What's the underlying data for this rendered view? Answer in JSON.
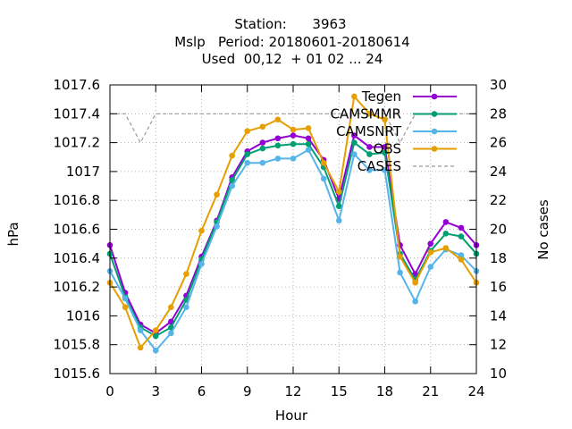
{
  "chart_data": {
    "type": "line",
    "title_lines": [
      "Station:      3963",
      "Mslp   Period: 20180601-20180614",
      "Used  00,12  + 01 02 ... 24"
    ],
    "xlabel": "Hour",
    "ylabel": "hPa",
    "y2label": "No cases",
    "xlim": [
      0,
      24
    ],
    "ylim": [
      1015.6,
      1017.6
    ],
    "y2lim": [
      10,
      30
    ],
    "x_ticks": [
      0,
      3,
      6,
      9,
      12,
      15,
      18,
      21,
      24
    ],
    "x_tick_labels": [
      "0",
      "3",
      "6",
      "9",
      "12",
      "15",
      "18",
      "21",
      "24"
    ],
    "y_ticks": [
      1015.6,
      1015.8,
      1016,
      1016.2,
      1016.4,
      1016.6,
      1016.8,
      1017,
      1017.2,
      1017.4,
      1017.6
    ],
    "y_tick_labels": [
      "1015.6",
      "1015.8",
      "1016",
      "1016.2",
      "1016.4",
      "1016.6",
      "1016.8",
      "1017",
      "1017.2",
      "1017.4",
      "1017.6"
    ],
    "y2_ticks": [
      10,
      12,
      14,
      16,
      18,
      20,
      22,
      24,
      26,
      28,
      30
    ],
    "y2_tick_labels": [
      "10",
      "12",
      "14",
      "16",
      "18",
      "20",
      "22",
      "24",
      "26",
      "28",
      "30"
    ],
    "grid": true,
    "legend_position": "top-right",
    "x": [
      0,
      1,
      2,
      3,
      4,
      5,
      6,
      7,
      8,
      9,
      10,
      11,
      12,
      13,
      14,
      15,
      16,
      17,
      18,
      19,
      20,
      21,
      22,
      23,
      24
    ],
    "series": [
      {
        "name": "Tegen",
        "color": "#9400d3",
        "axis": "y1",
        "marker": "circle",
        "values": [
          1016.49,
          1016.16,
          1015.94,
          1015.88,
          1015.96,
          1016.14,
          1016.41,
          1016.66,
          1016.96,
          1017.14,
          1017.2,
          1017.23,
          1017.25,
          1017.23,
          1017.08,
          1016.81,
          1017.25,
          1017.17,
          1017.17,
          1016.49,
          1016.29,
          1016.5,
          1016.65,
          1016.61,
          1016.49
        ]
      },
      {
        "name": "CAMSMMR",
        "color": "#009e73",
        "axis": "y1",
        "marker": "circle",
        "values": [
          1016.43,
          1016.13,
          1015.92,
          1015.86,
          1015.92,
          1016.11,
          1016.39,
          1016.65,
          1016.94,
          1017.12,
          1017.16,
          1017.18,
          1017.19,
          1017.19,
          1017.03,
          1016.76,
          1017.2,
          1017.12,
          1017.13,
          1016.43,
          1016.25,
          1016.45,
          1016.57,
          1016.55,
          1016.43
        ]
      },
      {
        "name": "CAMSNRT",
        "color": "#56b4e9",
        "axis": "y1",
        "marker": "circle",
        "values": [
          1016.31,
          1016.12,
          1015.9,
          1015.76,
          1015.88,
          1016.06,
          1016.36,
          1016.62,
          1016.9,
          1017.06,
          1017.06,
          1017.09,
          1017.09,
          1017.15,
          1016.95,
          1016.66,
          1017.12,
          1017.01,
          1017.01,
          1016.3,
          1016.1,
          1016.34,
          1016.46,
          1016.42,
          1016.31
        ]
      },
      {
        "name": "OBS",
        "color": "#e69f00",
        "axis": "y1",
        "marker": "circle",
        "values": [
          1016.23,
          1016.06,
          1015.78,
          1015.9,
          1016.06,
          1016.29,
          1016.59,
          1016.84,
          1017.11,
          1017.28,
          1017.31,
          1017.36,
          1017.29,
          1017.3,
          1017.06,
          1016.86,
          1017.52,
          1017.4,
          1017.36,
          1016.41,
          1016.23,
          1016.44,
          1016.47,
          1016.39,
          1016.23
        ]
      },
      {
        "name": "CASES",
        "color": "#999999",
        "axis": "y2",
        "dashed": true,
        "values": [
          28,
          28,
          26,
          28,
          28,
          28,
          28,
          28,
          28,
          28,
          28,
          28,
          28,
          28,
          28,
          28,
          28,
          28,
          28,
          26,
          28,
          28,
          28,
          28,
          28
        ]
      }
    ]
  }
}
